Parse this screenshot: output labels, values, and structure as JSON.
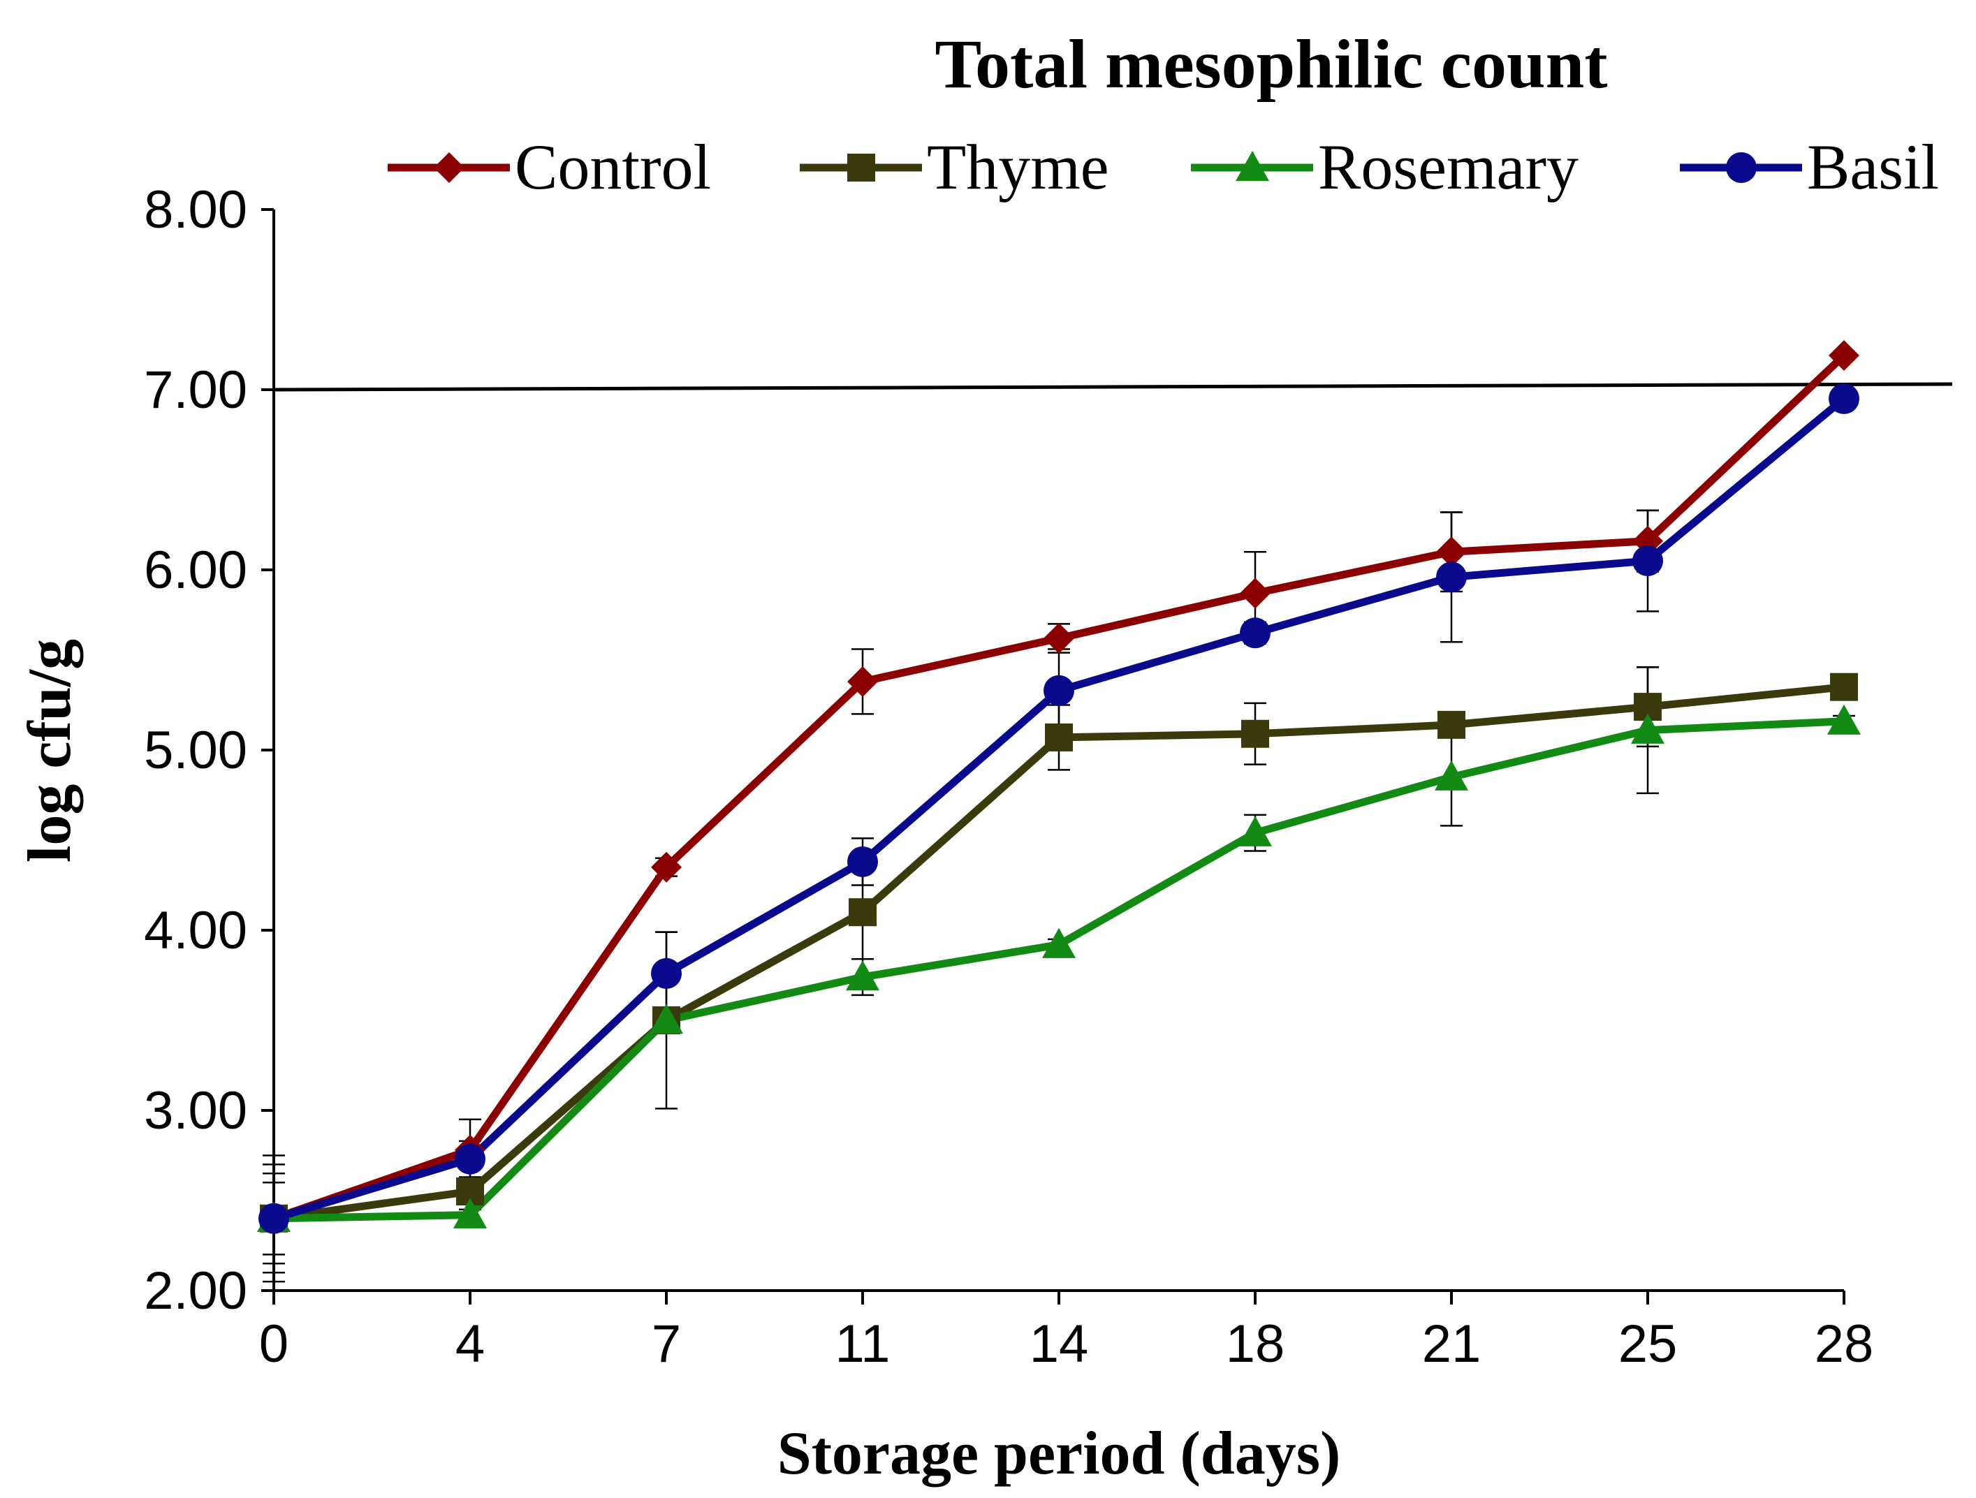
{
  "chart_data": {
    "type": "line",
    "title": "Total mesophilic count",
    "xlabel": "Storage period (days)",
    "ylabel": "log cfu/g",
    "x": [
      0,
      4,
      7,
      11,
      14,
      18,
      21,
      25,
      28
    ],
    "x_tick_labels": [
      "0",
      "4",
      "7",
      "11",
      "14",
      "18",
      "21",
      "25",
      "28"
    ],
    "ylim": [
      2,
      8
    ],
    "y_ticks": [
      2,
      3,
      4,
      5,
      6,
      7,
      8
    ],
    "y_tick_labels": [
      "2.00",
      "3.00",
      "4.00",
      "5.00",
      "6.00",
      "7.00",
      "8.00"
    ],
    "grid": false,
    "legend_position": "top",
    "reference_line": {
      "y": 7.0,
      "color": "#000000"
    },
    "series": [
      {
        "name": "Control",
        "color": "#8B0000",
        "marker": "diamond",
        "values": [
          2.4,
          2.78,
          4.35,
          5.38,
          5.62,
          5.87,
          6.1,
          6.16,
          7.19
        ],
        "errors": [
          0.35,
          0.17,
          0.05,
          0.18,
          0.08,
          0.23,
          0.22,
          0.17,
          0.02
        ]
      },
      {
        "name": "Thyme",
        "color": "#3A3A0C",
        "marker": "square",
        "values": [
          2.4,
          2.55,
          3.5,
          4.1,
          5.07,
          5.09,
          5.14,
          5.24,
          5.35
        ],
        "errors": [
          0.25,
          0.05,
          0.49,
          0.26,
          0.18,
          0.17,
          0.05,
          0.22,
          0.03
        ]
      },
      {
        "name": "Rosemary",
        "color": "#138A13",
        "marker": "triangle",
        "values": [
          2.4,
          2.42,
          3.5,
          3.74,
          3.92,
          4.54,
          4.85,
          5.11,
          5.16
        ],
        "errors": [
          0.2,
          0.03,
          0.05,
          0.1,
          0.03,
          0.1,
          0.27,
          0.35,
          0.03
        ]
      },
      {
        "name": "Basil",
        "color": "#0A0A8C",
        "marker": "circle",
        "values": [
          2.4,
          2.73,
          3.76,
          4.38,
          5.33,
          5.65,
          5.96,
          6.05,
          6.95
        ],
        "errors": [
          0.3,
          0.1,
          0.23,
          0.13,
          0.23,
          0.06,
          0.36,
          0.28,
          0.02
        ]
      }
    ]
  }
}
